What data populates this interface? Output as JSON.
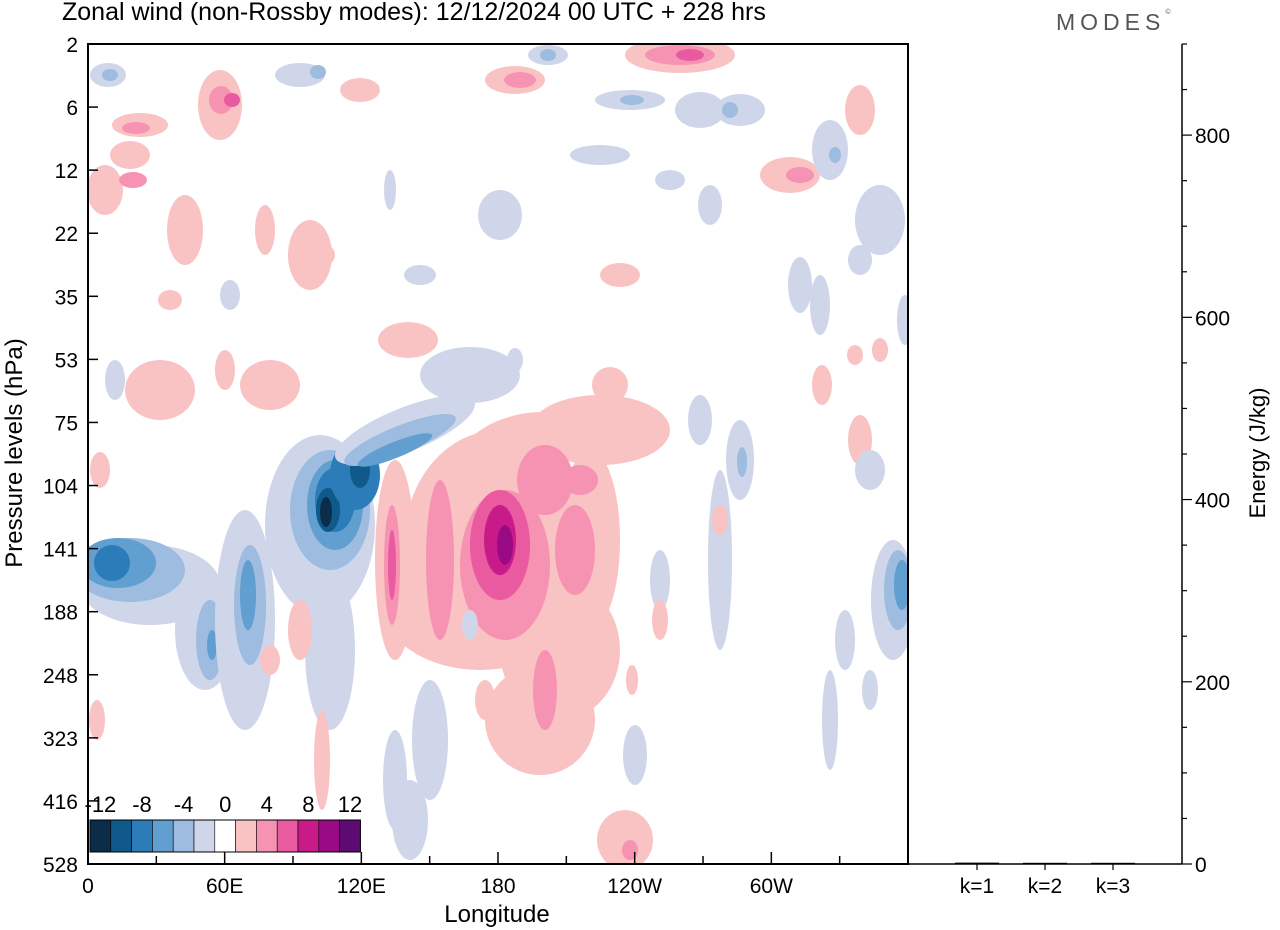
{
  "header": {
    "title": "Zonal wind (non-Rossby modes):  12/12/2024  00 UTC  + 228 hrs",
    "logo": "MODES"
  },
  "chart_data": [
    {
      "type": "heatmap",
      "title": "Zonal wind (non-Rossby modes):  12/12/2024  00 UTC  + 228 hrs",
      "xlabel": "Longitude",
      "ylabel": "Pressure levels (hPa)",
      "x_ticks": [
        "0",
        "60E",
        "120E",
        "180",
        "120W",
        "60W"
      ],
      "y_ticks": [
        "2",
        "6",
        "12",
        "22",
        "35",
        "53",
        "75",
        "104",
        "141",
        "188",
        "248",
        "323",
        "416",
        "528"
      ],
      "colorbar": {
        "labels": [
          "-12",
          "-8",
          "-4",
          "0",
          "4",
          "8",
          "12"
        ],
        "levels": [
          -14,
          -12,
          -10,
          -8,
          -6,
          -4,
          -2,
          2,
          4,
          6,
          8,
          10,
          12,
          14
        ],
        "colors": [
          "#0b2d4a",
          "#0f5a8a",
          "#2b7cb8",
          "#609fcf",
          "#9dbcdf",
          "#cfd6ea",
          "#ffffff",
          "#f9c3c4",
          "#f693b3",
          "#e95aa0",
          "#c91a8a",
          "#9a0a84",
          "#5e0a73"
        ]
      },
      "features": [
        {
          "lon": 105,
          "p": 122,
          "value": -13
        },
        {
          "lon": 12,
          "p": 150,
          "value": -8
        },
        {
          "lon": 72,
          "p": 165,
          "value": -8
        },
        {
          "lon": 125,
          "p": 90,
          "value": -6
        },
        {
          "lon": 358,
          "p": 155,
          "value": -6
        },
        {
          "lon": 182,
          "p": 145,
          "value": 10
        },
        {
          "lon": 133,
          "p": 145,
          "value": 6
        },
        {
          "lon": 195,
          "p": 280,
          "value": 5
        },
        {
          "lon": 267,
          "p": 2.3,
          "value": 8
        },
        {
          "lon": 55,
          "p": 8,
          "value": 5
        },
        {
          "lon": 315,
          "p": 14,
          "value": 6
        }
      ]
    },
    {
      "type": "bar",
      "categories": [
        "k=1",
        "k=2",
        "k=3"
      ],
      "values": [
        1.5,
        1.0,
        1.0
      ],
      "ylabel": "Energy (J/kg)",
      "ylim": [
        0,
        900
      ],
      "y_ticks": [
        "0",
        "200",
        "400",
        "600",
        "800"
      ]
    }
  ]
}
